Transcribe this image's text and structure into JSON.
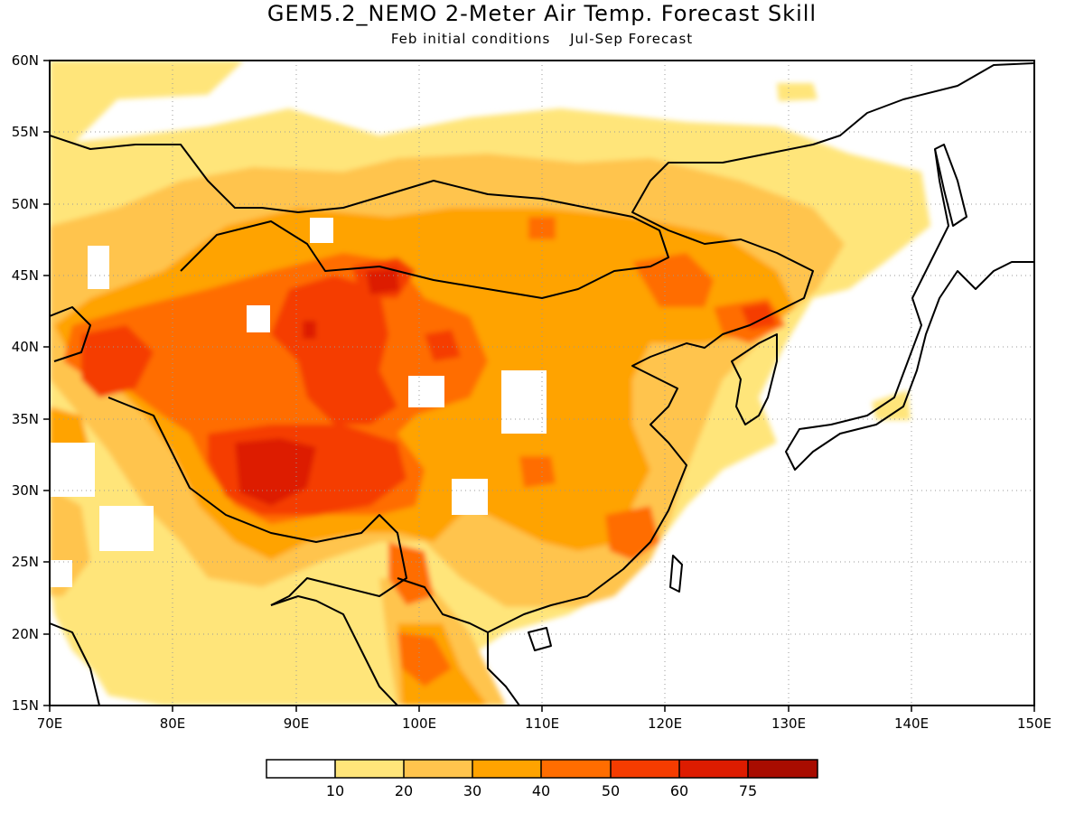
{
  "title": "GEM5.2_NEMO 2-Meter Air Temp. Forecast Skill",
  "subtitle": {
    "left": "Feb initial conditions",
    "right": "Jul-Sep Forecast"
  },
  "map": {
    "lon_range": [
      70,
      150
    ],
    "lat_range": [
      15,
      60
    ],
    "lon_ticks": [
      "70E",
      "80E",
      "90E",
      "100E",
      "110E",
      "120E",
      "130E",
      "140E",
      "150E"
    ],
    "lat_ticks": [
      "15N",
      "20N",
      "25N",
      "30N",
      "35N",
      "40N",
      "45N",
      "50N",
      "55N",
      "60N"
    ],
    "gridlines": "dotted"
  },
  "colorbar": {
    "labels": [
      "10",
      "20",
      "30",
      "40",
      "50",
      "60",
      "75"
    ],
    "colors": [
      "#ffffff",
      "#ffe57a",
      "#ffc44d",
      "#ffa300",
      "#ff6d00",
      "#f53c00",
      "#dd1c00",
      "#a80c00"
    ]
  },
  "skill_field": {
    "description_levels": [
      "<10",
      "10-20",
      "20-30",
      "30-40",
      "40-50",
      "50-60",
      "60-75",
      ">75"
    ],
    "blobs": [
      {
        "lon": 88,
        "lat": 31,
        "level": 6
      },
      {
        "lon": 92,
        "lat": 38,
        "level": 5
      },
      {
        "lon": 97,
        "lat": 45,
        "level": 6
      },
      {
        "lon": 76,
        "lat": 39,
        "level": 5
      },
      {
        "lon": 101,
        "lat": 39,
        "level": 5
      },
      {
        "lon": 111,
        "lat": 31,
        "level": 5
      },
      {
        "lon": 127,
        "lat": 42,
        "level": 5
      },
      {
        "lon": 122,
        "lat": 44,
        "level": 5
      },
      {
        "lon": 102,
        "lat": 23,
        "level": 5
      },
      {
        "lon": 102,
        "lat": 17,
        "level": 4
      }
    ]
  }
}
